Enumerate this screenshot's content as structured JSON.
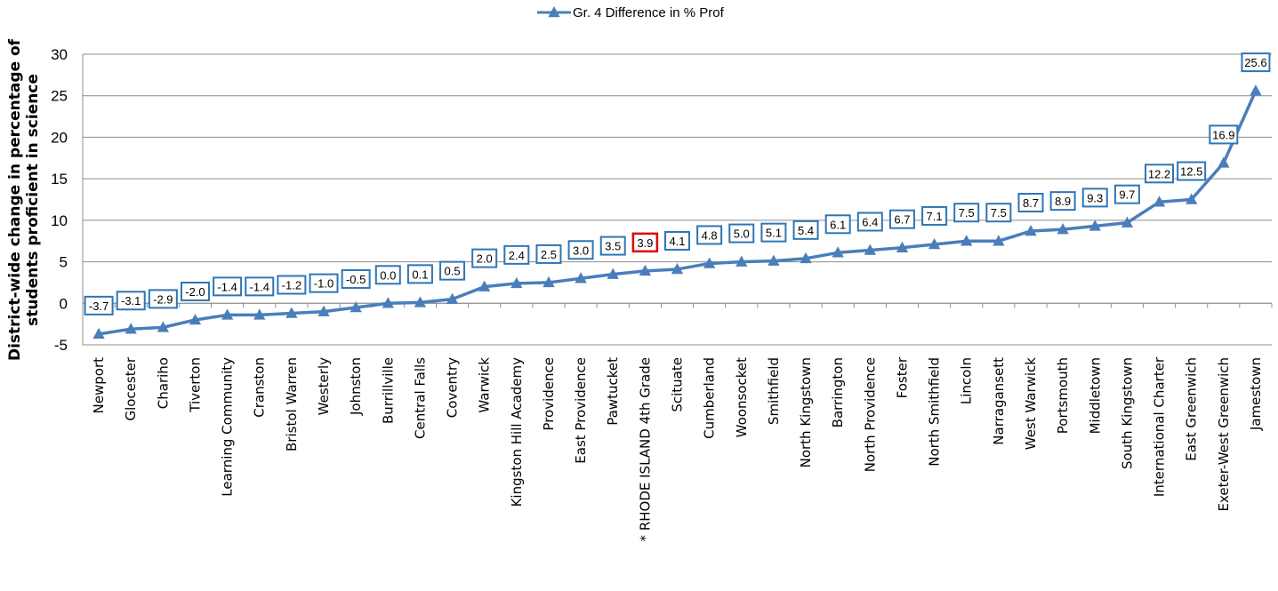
{
  "chart_data": {
    "type": "line",
    "title": "",
    "ylabel": "District-wide change in percentage of students proficient in science",
    "ylabel_lines": [
      "District-wide change in percentage of",
      "students proficient in science"
    ],
    "ylim": [
      -5,
      30
    ],
    "yticks": [
      -5,
      0,
      5,
      10,
      15,
      20,
      25,
      30
    ],
    "grid": true,
    "legend_position": "top",
    "line_color": "#4a7ebb",
    "highlight_color": "#e00000",
    "categories": [
      "Newport",
      "Glocester",
      "Chariho",
      "Tiverton",
      "Learning Community",
      "Cranston",
      "Bristol Warren",
      "Westerly",
      "Johnston",
      "Burrillville",
      "Central Falls",
      "Coventry",
      "Warwick",
      "Kingston Hill Academy",
      "Providence",
      "East Providence",
      "Pawtucket",
      "* RHODE ISLAND 4th Grade",
      "Scituate",
      "Cumberland",
      "Woonsocket",
      "Smithfield",
      "North Kingstown",
      "Barrington",
      "North Providence",
      "Foster",
      "North Smithfield",
      "Lincoln",
      "Narragansett",
      "West Warwick",
      "Portsmouth",
      "Middletown",
      "South Kingstown",
      "International Charter",
      "East Greenwich",
      "Exeter-West Greenwich",
      "Jamestown"
    ],
    "series": [
      {
        "name": "Gr. 4 Difference in % Prof",
        "values": [
          -3.7,
          -3.1,
          -2.9,
          -2.0,
          -1.4,
          -1.4,
          -1.2,
          -1.0,
          -0.5,
          0.0,
          0.1,
          0.5,
          2.0,
          2.4,
          2.5,
          3.0,
          3.5,
          3.9,
          4.1,
          4.8,
          5.0,
          5.1,
          5.4,
          6.1,
          6.4,
          6.7,
          7.1,
          7.5,
          7.5,
          8.7,
          8.9,
          9.3,
          9.7,
          12.2,
          12.5,
          16.9,
          25.6
        ],
        "data_labels": [
          "-3.7",
          "-3.1",
          "-2.9",
          "-2.0",
          "-1.4",
          "-1.4",
          "-1.2",
          "-1.0",
          "-0.5",
          "0.0",
          "0.1",
          "0.5",
          "2.0",
          "2.4",
          "2.5",
          "3.0",
          "3.5",
          "3.9",
          "4.1",
          "4.8",
          "5.0",
          "5.1",
          "5.4",
          "6.1",
          "6.4",
          "6.7",
          "7.1",
          "7.5",
          "7.5",
          "8.7",
          "8.9",
          "9.3",
          "9.7",
          "12.2",
          "12.5",
          "16.9",
          "25.6"
        ]
      }
    ],
    "highlight_category": "* RHODE ISLAND 4th Grade"
  }
}
